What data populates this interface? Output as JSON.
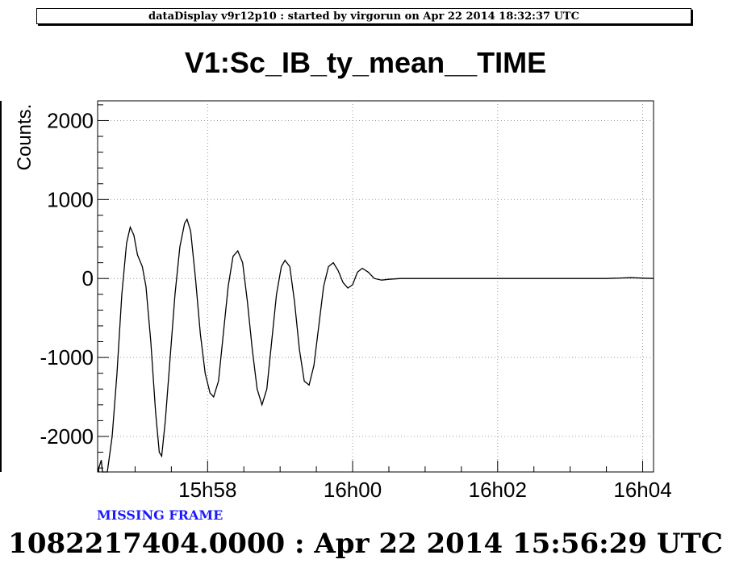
{
  "header": {
    "banner": "dataDisplay v9r12p10 : started by virgorun on Apr 22 2014 18:32:37 UTC"
  },
  "status": {
    "missing_frame": "MISSING FRAME"
  },
  "footer": {
    "timestamp": "1082217404.0000 : Apr 22 2014 15:56:29 UTC"
  },
  "chart_data": {
    "type": "line",
    "title": "V1:Sc_IB_ty_mean__TIME",
    "xlabel": "",
    "ylabel": "Counts.",
    "x_unit": "minutes",
    "xlim": [
      "15:56:29",
      "16:04:09"
    ],
    "ylim": [
      -2450,
      2250
    ],
    "x_ticks": [
      {
        "t": "15:58:00",
        "label": "15h58"
      },
      {
        "t": "16:00:00",
        "label": "16h00"
      },
      {
        "t": "16:02:00",
        "label": "16h02"
      },
      {
        "t": "16:04:00",
        "label": "16h04"
      }
    ],
    "y_ticks": [
      {
        "v": 2000,
        "label": "2000"
      },
      {
        "v": 1000,
        "label": "1000"
      },
      {
        "v": 0,
        "label": "0"
      },
      {
        "v": -1000,
        "label": "-1000"
      },
      {
        "v": -2000,
        "label": "-2000"
      }
    ],
    "grid": true,
    "line_color": "#000000",
    "series": [
      {
        "points": [
          [
            "15:56:29",
            -2450
          ],
          [
            "15:56:32",
            -2300
          ],
          [
            "15:56:33",
            -2450
          ],
          [
            "15:56:37",
            -2450
          ],
          [
            "15:56:41",
            -2000
          ],
          [
            "15:56:45",
            -1200
          ],
          [
            "15:56:49",
            -200
          ],
          [
            "15:56:53",
            450
          ],
          [
            "15:56:56",
            650
          ],
          [
            "15:56:59",
            550
          ],
          [
            "15:57:02",
            300
          ],
          [
            "15:57:06",
            150
          ],
          [
            "15:57:09",
            -100
          ],
          [
            "15:57:13",
            -800
          ],
          [
            "15:57:17",
            -1700
          ],
          [
            "15:57:20",
            -2200
          ],
          [
            "15:57:22",
            -2250
          ],
          [
            "15:57:25",
            -1800
          ],
          [
            "15:57:29",
            -1000
          ],
          [
            "15:57:33",
            -200
          ],
          [
            "15:57:37",
            400
          ],
          [
            "15:57:41",
            700
          ],
          [
            "15:57:43",
            750
          ],
          [
            "15:57:46",
            600
          ],
          [
            "15:57:50",
            0
          ],
          [
            "15:57:54",
            -700
          ],
          [
            "15:57:58",
            -1200
          ],
          [
            "15:58:02",
            -1450
          ],
          [
            "15:58:05",
            -1500
          ],
          [
            "15:58:09",
            -1300
          ],
          [
            "15:58:13",
            -700
          ],
          [
            "15:58:17",
            -100
          ],
          [
            "15:58:21",
            280
          ],
          [
            "15:58:25",
            350
          ],
          [
            "15:58:29",
            200
          ],
          [
            "15:58:33",
            -300
          ],
          [
            "15:58:37",
            -900
          ],
          [
            "15:58:41",
            -1400
          ],
          [
            "15:58:45",
            -1600
          ],
          [
            "15:58:49",
            -1400
          ],
          [
            "15:58:53",
            -800
          ],
          [
            "15:58:57",
            -200
          ],
          [
            "15:59:01",
            150
          ],
          [
            "15:59:04",
            230
          ],
          [
            "15:59:08",
            150
          ],
          [
            "15:59:12",
            -300
          ],
          [
            "15:59:16",
            -900
          ],
          [
            "15:59:20",
            -1300
          ],
          [
            "15:59:24",
            -1350
          ],
          [
            "15:59:28",
            -1100
          ],
          [
            "15:59:32",
            -600
          ],
          [
            "15:59:36",
            -100
          ],
          [
            "15:59:40",
            150
          ],
          [
            "15:59:44",
            200
          ],
          [
            "15:59:48",
            100
          ],
          [
            "15:59:52",
            -50
          ],
          [
            "15:59:56",
            -120
          ],
          [
            "16:00:00",
            -80
          ],
          [
            "16:00:04",
            80
          ],
          [
            "16:00:08",
            130
          ],
          [
            "16:00:13",
            80
          ],
          [
            "16:00:18",
            0
          ],
          [
            "16:00:24",
            -20
          ],
          [
            "16:00:30",
            -10
          ],
          [
            "16:00:40",
            0
          ],
          [
            "16:01:00",
            0
          ],
          [
            "16:01:30",
            0
          ],
          [
            "16:02:00",
            0
          ],
          [
            "16:02:30",
            0
          ],
          [
            "16:03:00",
            0
          ],
          [
            "16:03:30",
            0
          ],
          [
            "16:03:50",
            10
          ],
          [
            "16:04:09",
            0
          ]
        ]
      }
    ]
  }
}
